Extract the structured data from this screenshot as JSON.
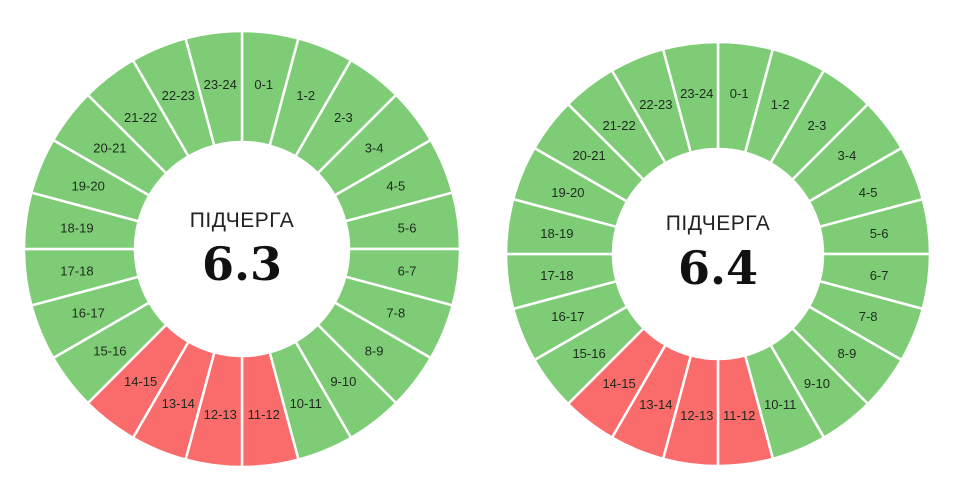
{
  "chart_data": [
    {
      "type": "pie",
      "variant": "donut",
      "title": "ПІДЧЕРГА",
      "value": "6.3",
      "categories": [
        "0-1",
        "1-2",
        "2-3",
        "3-4",
        "4-5",
        "5-6",
        "6-7",
        "7-8",
        "8-9",
        "9-10",
        "10-11",
        "11-12",
        "12-13",
        "13-14",
        "14-15",
        "15-16",
        "16-17",
        "17-18",
        "18-19",
        "19-20",
        "20-21",
        "21-22",
        "22-23",
        "23-24"
      ],
      "status": [
        "on",
        "on",
        "on",
        "on",
        "on",
        "on",
        "on",
        "on",
        "on",
        "on",
        "on",
        "off",
        "off",
        "off",
        "off",
        "on",
        "on",
        "on",
        "on",
        "on",
        "on",
        "on",
        "on",
        "on"
      ]
    },
    {
      "type": "pie",
      "variant": "donut",
      "title": "ПІДЧЕРГА",
      "value": "6.4",
      "categories": [
        "0-1",
        "1-2",
        "2-3",
        "3-4",
        "4-5",
        "5-6",
        "6-7",
        "7-8",
        "8-9",
        "9-10",
        "10-11",
        "11-12",
        "12-13",
        "13-14",
        "14-15",
        "15-16",
        "16-17",
        "17-18",
        "18-19",
        "19-20",
        "20-21",
        "21-22",
        "22-23",
        "23-24"
      ],
      "status": [
        "on",
        "on",
        "on",
        "on",
        "on",
        "on",
        "on",
        "on",
        "on",
        "on",
        "on",
        "off",
        "off",
        "off",
        "off",
        "on",
        "on",
        "on",
        "on",
        "on",
        "on",
        "on",
        "on",
        "on"
      ]
    }
  ],
  "colors": {
    "on": "#7ecd76",
    "off": "#fa6b6b"
  }
}
